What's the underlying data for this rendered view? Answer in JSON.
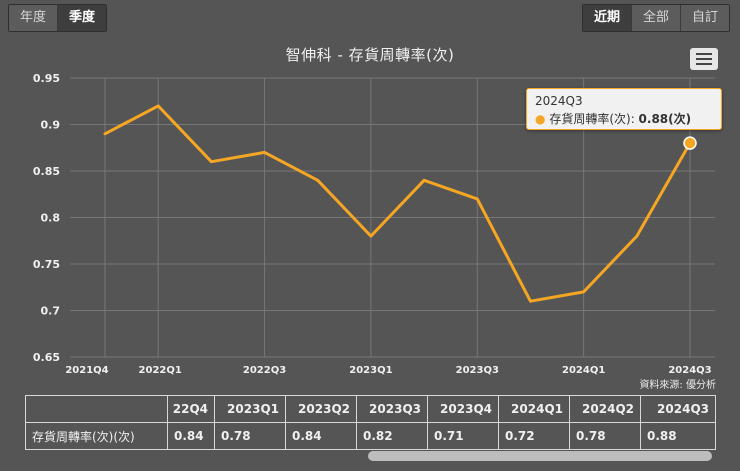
{
  "period_toggle": {
    "annual": "年度",
    "quarterly": "季度",
    "selected": "季度"
  },
  "range_toggle": {
    "recent": "近期",
    "all": "全部",
    "custom": "自訂",
    "selected": "近期"
  },
  "chart_title": "智伸科 - 存貨周轉率(次)",
  "tooltip": {
    "title": "2024Q3",
    "series": "存貨周轉率(次)",
    "value": "0.88(次)"
  },
  "source_note": "資料來源: 優分析",
  "chart_data": {
    "type": "line",
    "title": "智伸科 - 存貨周轉率(次)",
    "x": [
      "2021Q4",
      "2022Q1",
      "2022Q2",
      "2022Q3",
      "2022Q4",
      "2023Q1",
      "2023Q2",
      "2023Q3",
      "2023Q4",
      "2024Q1",
      "2024Q2",
      "2024Q3"
    ],
    "x_tick_labels": [
      "2021Q4",
      "2022Q1",
      "2022Q3",
      "2023Q1",
      "2023Q3",
      "2024Q1",
      "2024Q3"
    ],
    "series": [
      {
        "name": "存貨周轉率(次)",
        "values": [
          0.89,
          0.92,
          0.86,
          0.87,
          0.84,
          0.78,
          0.84,
          0.82,
          0.71,
          0.72,
          0.78,
          0.88
        ]
      }
    ],
    "y_ticks": [
      "0.65",
      "0.7",
      "0.75",
      "0.8",
      "0.85",
      "0.9",
      "0.95"
    ],
    "ylim": [
      0.65,
      0.95
    ],
    "grid": true,
    "line_color": "#f5a623",
    "highlighted_point": "2024Q3"
  },
  "table": {
    "columns": [
      "22Q4",
      "2023Q1",
      "2023Q2",
      "2023Q3",
      "2023Q4",
      "2024Q1",
      "2024Q2",
      "2024Q3"
    ],
    "row_label": "存貨周轉率(次)(次)",
    "values": [
      "0.84",
      "0.78",
      "0.84",
      "0.82",
      "0.71",
      "0.72",
      "0.78",
      "0.88"
    ]
  }
}
